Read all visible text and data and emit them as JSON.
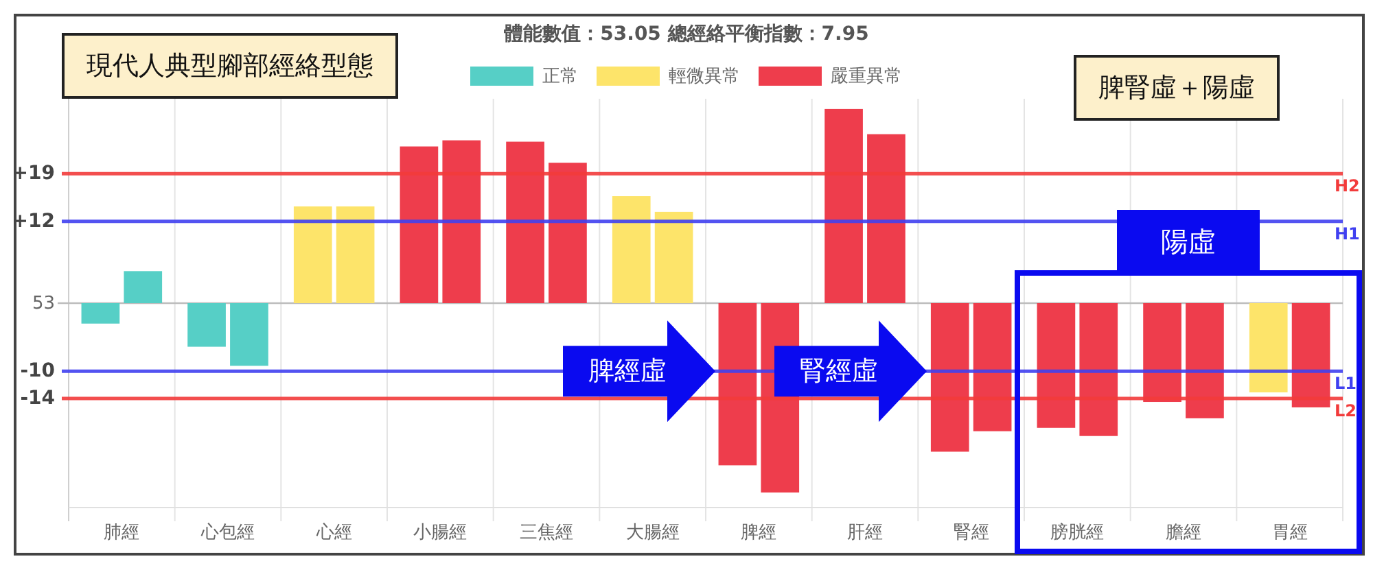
{
  "chart_data": {
    "type": "bar",
    "title": "體能數值：53.05 總經絡平衡指數：7.95",
    "categories": [
      "肺經",
      "心包經",
      "心經",
      "小腸經",
      "三焦經",
      "大腸經",
      "脾經",
      "肝經",
      "腎經",
      "膀胱經",
      "膽經",
      "胃經"
    ],
    "series": [
      {
        "colors": [
          "#56cfc6",
          "#56cfc6",
          "#fde46a",
          "#ee3d4c",
          "#ee3d4c",
          "#fde46a",
          "#ee3d4c",
          "#ee3d4c",
          "#ee3d4c",
          "#ee3d4c",
          "#ee3d4c",
          "#fde46a"
        ],
        "values": [
          -3,
          -6.4,
          14.2,
          23,
          23.7,
          15.7,
          -23.8,
          28.5,
          -21.8,
          -18.3,
          -14.5,
          -13.1
        ]
      },
      {
        "colors": [
          "#56cfc6",
          "#56cfc6",
          "#fde46a",
          "#ee3d4c",
          "#ee3d4c",
          "#fde46a",
          "#ee3d4c",
          "#ee3d4c",
          "#ee3d4c",
          "#ee3d4c",
          "#ee3d4c",
          "#ee3d4c"
        ],
        "values": [
          4.7,
          -9.2,
          14.2,
          23.9,
          20.6,
          13.4,
          -27.8,
          24.8,
          -18.8,
          -19.5,
          -16.9,
          -15.3
        ]
      },
      {
        "name": "正常",
        "color": "#56cfc6",
        "values": [
          null,
          null,
          null,
          null,
          null,
          null,
          null,
          null,
          null,
          null,
          null,
          null
        ]
      },
      {
        "name": "輕微異常",
        "color": "#fde46a",
        "values": [
          null,
          null,
          null,
          null,
          null,
          null,
          null,
          null,
          null,
          null,
          null,
          null
        ]
      },
      {
        "name": "嚴重異常",
        "color": "#ee3d4c",
        "values": [
          null,
          null,
          null,
          null,
          null,
          null,
          null,
          null,
          null,
          null,
          null,
          null
        ]
      }
    ],
    "ylim": [
      -30,
      30
    ],
    "yticks": [
      {
        "value": 19,
        "label": "+19"
      },
      {
        "value": 12,
        "label": "+12"
      },
      -10,
      -14
    ],
    "ref_lines": [
      {
        "axis": "y",
        "value": 19,
        "label": "H2",
        "color": "#f23b3b"
      },
      {
        "axis": "y",
        "value": 12,
        "label": "H1",
        "color": "#4040f0"
      },
      {
        "axis": "y",
        "value": -10,
        "label": "L1",
        "color": "#4040f0"
      },
      {
        "axis": "y",
        "value": -14,
        "label": "L2",
        "color": "#f23b3b"
      }
    ],
    "bands": [
      {
        "axis": "x",
        "from": "膀胱經",
        "to": "胃經",
        "label": "陽虛",
        "color": "#0a0af0"
      }
    ],
    "annotations": [
      "現代人典型腳部經絡型態",
      "脾腎虛＋陽虛",
      "53",
      {
        "text": "脾經虛",
        "y": -10
      },
      {
        "text": "腎經虛",
        "y": -10
      }
    ],
    "grid": "x",
    "legend": "top"
  }
}
